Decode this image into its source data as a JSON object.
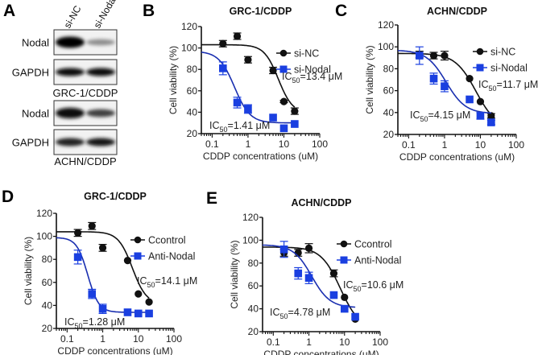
{
  "figure": {
    "panel_a": {
      "letter": "A",
      "lanes": [
        "si-NC",
        "si-Nodal"
      ],
      "groups": [
        {
          "cell_line": "GRC-1/CDDP",
          "blots": [
            {
              "protein": "Nodal",
              "intensities": [
                1.0,
                0.35
              ]
            },
            {
              "protein": "GAPDH",
              "intensities": [
                0.95,
                0.95
              ]
            }
          ]
        },
        {
          "cell_line": "ACHN/CDDP",
          "blots": [
            {
              "protein": "Nodal",
              "intensities": [
                0.95,
                0.7
              ]
            },
            {
              "protein": "GAPDH",
              "intensities": [
                0.85,
                0.9
              ]
            }
          ]
        }
      ]
    }
  },
  "colors": {
    "control": "#111111",
    "treatment_marker": "#1a3fe0",
    "treatment_line": "#1a2fb0"
  },
  "chart_data": [
    {
      "panel": "B",
      "type": "scatter",
      "title": "GRC-1/CDDP",
      "xlabel": "CDDP concentrations (uM)",
      "ylabel": "Cell viability (%)",
      "xscale": "log",
      "xlim": [
        0.05,
        100
      ],
      "ylim": [
        20,
        120
      ],
      "xticks": [
        "0.1",
        "1",
        "10",
        "100"
      ],
      "xtick_values": [
        0.1,
        1,
        10,
        100
      ],
      "yticks": [
        20,
        40,
        60,
        80,
        100,
        120
      ],
      "legend_position": "top-right",
      "x": [
        0.2,
        0.5,
        1,
        5,
        10,
        20
      ],
      "series": [
        {
          "name": "si-NC",
          "marker": "circle",
          "color_key": "control",
          "values": [
            104,
            111,
            89,
            79,
            50,
            41
          ],
          "errors": [
            3,
            3,
            3,
            3,
            1,
            3
          ],
          "fit": {
            "top": 103,
            "bottom": 39,
            "ic50": 7.0,
            "hill": 2.2
          },
          "annotation": {
            "label": "IC",
            "sub": "50",
            "value": "=13.4 μM"
          }
        },
        {
          "name": "si-Nodal",
          "marker": "square",
          "color_key": "treatment",
          "values": [
            81,
            49,
            43,
            35,
            25,
            29
          ],
          "errors": [
            6,
            5,
            4,
            0,
            0,
            0
          ],
          "fit": {
            "top": 97,
            "bottom": 30,
            "ic50": 0.42,
            "hill": 2.0
          },
          "annotation": {
            "label": "IC",
            "sub": "50",
            "value": "=1.41 μM"
          }
        }
      ]
    },
    {
      "panel": "C",
      "type": "scatter",
      "title": "ACHN/CDDP",
      "xlabel": "CDDP concentrations (uM)",
      "ylabel": "Cell viability (%)",
      "xscale": "log",
      "xlim": [
        0.05,
        100
      ],
      "ylim": [
        20,
        120
      ],
      "xticks": [
        "0.1",
        "1",
        "10",
        "100"
      ],
      "xtick_values": [
        0.1,
        1,
        10,
        100
      ],
      "yticks": [
        20,
        40,
        60,
        80,
        100,
        120
      ],
      "legend_position": "top-right",
      "x": [
        0.2,
        0.5,
        1,
        5,
        10,
        20
      ],
      "series": [
        {
          "name": "si-NC",
          "marker": "circle",
          "color_key": "control",
          "values": [
            93,
            92,
            92,
            71,
            50,
            37
          ],
          "errors": [
            3,
            3,
            4,
            0,
            0,
            2
          ],
          "fit": {
            "top": 94,
            "bottom": 25,
            "ic50": 7.5,
            "hill": 1.5
          },
          "annotation": {
            "label": "IC",
            "sub": "50",
            "value": "=11.7 μM"
          }
        },
        {
          "name": "si-Nodal",
          "marker": "square",
          "color_key": "treatment",
          "values": [
            92,
            71,
            64,
            52,
            37,
            31
          ],
          "errors": [
            8,
            5,
            5,
            0,
            3,
            2
          ],
          "fit": {
            "top": 97,
            "bottom": 39,
            "ic50": 1.1,
            "hill": 1.6
          },
          "annotation": {
            "label": "IC",
            "sub": "50",
            "value": "=4.15 μM"
          }
        }
      ]
    },
    {
      "panel": "D",
      "type": "scatter",
      "title": "GRC-1/CDDP",
      "xlabel": "CDDP concentrations (uM)",
      "ylabel": "Cell viability (%)",
      "xscale": "log",
      "xlim": [
        0.05,
        100
      ],
      "ylim": [
        20,
        120
      ],
      "xticks": [
        "0.1",
        "1",
        "10",
        "100"
      ],
      "xtick_values": [
        0.1,
        1,
        10,
        100
      ],
      "yticks": [
        20,
        40,
        60,
        80,
        100,
        120
      ],
      "legend_position": "top-right",
      "x": [
        0.2,
        0.5,
        1,
        5,
        10,
        20
      ],
      "series": [
        {
          "name": "Ccontrol",
          "marker": "circle",
          "color_key": "control",
          "values": [
            103,
            109,
            90,
            79,
            50,
            43
          ],
          "errors": [
            3,
            3,
            3,
            0,
            0,
            0
          ],
          "fit": {
            "top": 104,
            "bottom": 41,
            "ic50": 6.8,
            "hill": 2.2
          },
          "annotation": {
            "label": "IC",
            "sub": "50",
            "value": "=14.1 μM"
          }
        },
        {
          "name": "Anti-Nodal",
          "marker": "square",
          "color_key": "treatment",
          "values": [
            82,
            50,
            37,
            34,
            33,
            33
          ],
          "errors": [
            6,
            4,
            4,
            0,
            0,
            0
          ],
          "fit": {
            "top": 99,
            "bottom": 34,
            "ic50": 0.38,
            "hill": 2.8
          },
          "annotation": {
            "label": "IC",
            "sub": "50",
            "value": "=1.28 μM"
          }
        }
      ]
    },
    {
      "panel": "E",
      "type": "scatter",
      "title": "ACHN/CDDP",
      "xlabel": "CDDP concentrations (uM)",
      "ylabel": "Cell viability (%)",
      "xscale": "log",
      "xlim": [
        0.05,
        100
      ],
      "ylim": [
        20,
        120
      ],
      "xticks": [
        "0.1",
        "1",
        "10",
        "100"
      ],
      "xtick_values": [
        0.1,
        1,
        10,
        100
      ],
      "yticks": [
        20,
        40,
        60,
        80,
        100,
        120
      ],
      "legend_position": "top-right",
      "x": [
        0.2,
        0.5,
        1,
        5,
        10,
        20
      ],
      "series": [
        {
          "name": "Ccontrol",
          "marker": "circle",
          "color_key": "control",
          "values": [
            89,
            89,
            93,
            71,
            50,
            31
          ],
          "errors": [
            3,
            3,
            4,
            3,
            0,
            0
          ],
          "fit": {
            "top": 94,
            "bottom": 22,
            "ic50": 7.6,
            "hill": 1.6
          },
          "annotation": {
            "label": "IC",
            "sub": "50",
            "value": "=10.6 μM"
          }
        },
        {
          "name": "Anti-Nodal",
          "marker": "square",
          "color_key": "treatment",
          "values": [
            92,
            71,
            67,
            52,
            40,
            33
          ],
          "errors": [
            7,
            5,
            5,
            0,
            0,
            0
          ],
          "fit": {
            "top": 96,
            "bottom": 41,
            "ic50": 1.2,
            "hill": 1.7
          },
          "annotation": {
            "label": "IC",
            "sub": "50",
            "value": "=4.78 μM"
          }
        }
      ]
    }
  ]
}
